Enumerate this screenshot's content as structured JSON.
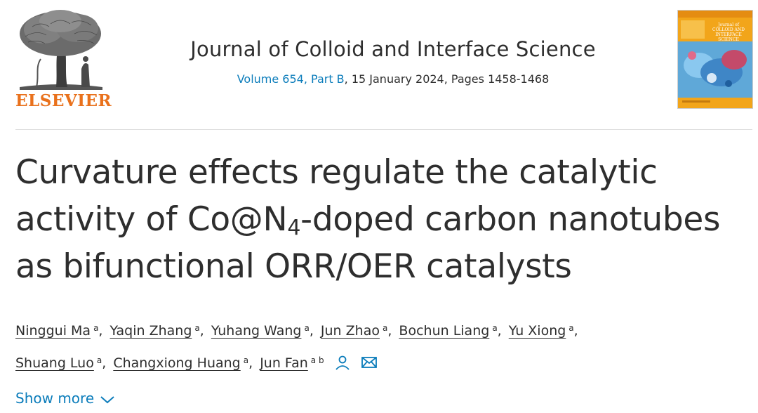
{
  "header": {
    "publisher": "ELSEVIER",
    "journal_title": "Journal of Colloid and Interface Science",
    "volume_link": "Volume 654, Part B",
    "issue_rest": ", 15 January 2024, Pages 1458-1468",
    "cover_title": "Journal of COLLOID AND INTERFACE SCIENCE"
  },
  "article": {
    "title_line1": "Curvature effects regulate the catalytic",
    "title_line2_pre": "activity of Co@N",
    "title_line2_sub": "4",
    "title_line2_post": "-doped carbon nanotubes",
    "title_line3": "as bifunctional ORR/OER catalysts"
  },
  "authors": [
    {
      "name": "Ninggui Ma",
      "aff": "a"
    },
    {
      "name": "Yaqin Zhang",
      "aff": "a"
    },
    {
      "name": "Yuhang Wang",
      "aff": "a"
    },
    {
      "name": "Jun Zhao",
      "aff": "a"
    },
    {
      "name": "Bochun Liang",
      "aff": "a"
    },
    {
      "name": "Yu Xiong",
      "aff": "a"
    },
    {
      "name": "Shuang Luo",
      "aff": "a"
    },
    {
      "name": "Changxiong Huang",
      "aff": "a"
    },
    {
      "name": "Jun Fan",
      "aff": "a b"
    }
  ],
  "show_more": "Show more",
  "colors": {
    "accent": "#0c7dbb",
    "brand": "#e9711c",
    "text": "#2e2e2e"
  },
  "icons": [
    "person-icon",
    "envelope-icon",
    "chevron-down-icon"
  ]
}
